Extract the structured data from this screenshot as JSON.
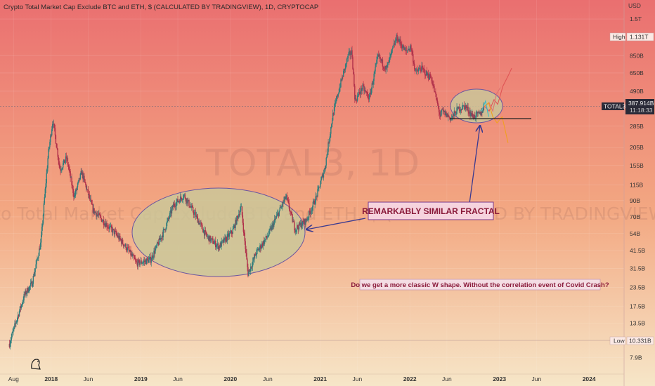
{
  "chart_data": {
    "type": "candlestick-line",
    "title": "Crypto Total Market Cap Exclude BTC and ETH, $ (CALCULATED BY TRADINGVIEW), 1D, CRYPTOCAP",
    "watermark_big": "TOTAL3, 1D",
    "watermark_small": "Crypto Total Market Cap Exclude BTC and ETH, $ (CALCULATED BY TRADINGVIEW)",
    "y_scale": "log",
    "y_unit": "USD",
    "y_ticks": [
      "1.5T",
      "850B",
      "650B",
      "490B",
      "285B",
      "205B",
      "155B",
      "115B",
      "90B",
      "70B",
      "54B",
      "41.5B",
      "31.5B",
      "23.5B",
      "17.5B",
      "13.5B",
      "7.9B"
    ],
    "x_ticks": [
      "Aug",
      "2018",
      "Jun",
      "2019",
      "Jun",
      "2020",
      "Jun",
      "2021",
      "Jun",
      "2022",
      "Jun",
      "2023",
      "Jun",
      "2024"
    ],
    "series": [
      {
        "x": [
          "2017-07-15",
          "2017-08-15",
          "2017-09-15",
          "2017-10-15",
          "2017-11-20",
          "2017-12-20",
          "2018-01-08",
          "2018-02-06",
          "2018-03-05",
          "2018-04-05",
          "2018-05-05",
          "2018-06-20",
          "2018-08-15",
          "2018-09-20",
          "2018-11-10",
          "2018-12-15",
          "2019-02-10",
          "2019-04-05",
          "2019-05-15",
          "2019-06-26",
          "2019-08-15",
          "2019-09-25",
          "2019-11-15",
          "2020-01-10",
          "2020-02-14",
          "2020-03-13",
          "2020-04-15",
          "2020-06-01",
          "2020-08-15",
          "2020-09-20",
          "2020-11-05",
          "2020-12-15",
          "2021-01-20",
          "2021-02-20",
          "2021-03-15",
          "2021-04-25",
          "2021-05-10",
          "2021-05-23",
          "2021-06-22",
          "2021-07-20",
          "2021-08-25",
          "2021-09-10",
          "2021-09-28",
          "2021-10-25",
          "2021-11-09",
          "2021-12-15",
          "2022-01-05",
          "2022-01-24",
          "2022-02-15",
          "2022-03-10",
          "2022-03-30",
          "2022-05-05",
          "2022-05-12",
          "2022-06-18",
          "2022-07-15",
          "2022-08-14",
          "2022-09-15",
          "2022-10-15",
          "2022-11-01"
        ],
        "values": [
          9.8,
          14.5,
          21,
          25,
          47,
          185,
          315,
          145,
          175,
          95,
          140,
          78,
          62,
          54,
          42,
          34,
          36,
          56,
          84,
          98,
          70,
          52,
          44,
          56,
          82,
          29,
          40,
          52,
          96,
          58,
          66,
          94,
          150,
          330,
          480,
          850,
          900,
          420,
          520,
          440,
          850,
          760,
          690,
          960,
          1130,
          900,
          980,
          650,
          700,
          640,
          600,
          330,
          360,
          320,
          370,
          390,
          330,
          345,
          388
        ]
      }
    ],
    "annotations": {
      "fractal_label": "REMARKABLY SIMILAR  FRACTAL",
      "question": "Do we get a more classic W shape. Without the correlation event of Covid Crash?"
    },
    "projections": [
      {
        "name": "bull path 1",
        "color": "#e05555",
        "x": [
          "2022-11-01",
          "2022-11-20",
          "2022-12-10",
          "2022-12-25",
          "2023-01-15",
          "2023-02-05",
          "2023-02-20"
        ],
        "values": [
          388,
          360,
          430,
          400,
          530,
          620,
          700
        ]
      },
      {
        "name": "bull path 2",
        "color": "#e07070",
        "x": [
          "2022-11-01",
          "2022-11-20",
          "2022-12-05",
          "2022-12-20",
          "2023-01-05"
        ],
        "values": [
          388,
          410,
          360,
          470,
          520
        ]
      },
      {
        "name": "bear path",
        "color": "#f0a020",
        "x": [
          "2022-11-01",
          "2022-11-18",
          "2022-12-05",
          "2022-12-22",
          "2023-01-12",
          "2023-02-05"
        ],
        "values": [
          388,
          410,
          330,
          300,
          330,
          220
        ]
      },
      {
        "name": "cyan path",
        "color": "#33bbcc",
        "x": [
          "2022-10-20",
          "2022-11-05",
          "2022-11-18"
        ],
        "values": [
          360,
          420,
          330
        ]
      }
    ],
    "price_tags": {
      "high_label": "High",
      "high_value": "1.131T",
      "symbol": "TOTAL3",
      "current_value": "387.914B",
      "countdown": "11:18:33",
      "low_label": "Low",
      "low_value": "10.331B"
    },
    "axis_unit_label": "USD",
    "colors": {
      "candle_up": "#2f7d7d",
      "candle_down": "#b0304a",
      "ellipse_fill": "#c9c89a",
      "ellipse_stroke": "#6a55a0",
      "arrow": "#3a3a90",
      "label_box_fill": "#f6d3de",
      "label_box_stroke": "#7a3a8a",
      "annotation_text": "#8a1a3a",
      "current_tag": "#2a2a38",
      "bg_top": "#ea6f70",
      "bg_bottom": "#f6e6c8"
    }
  }
}
